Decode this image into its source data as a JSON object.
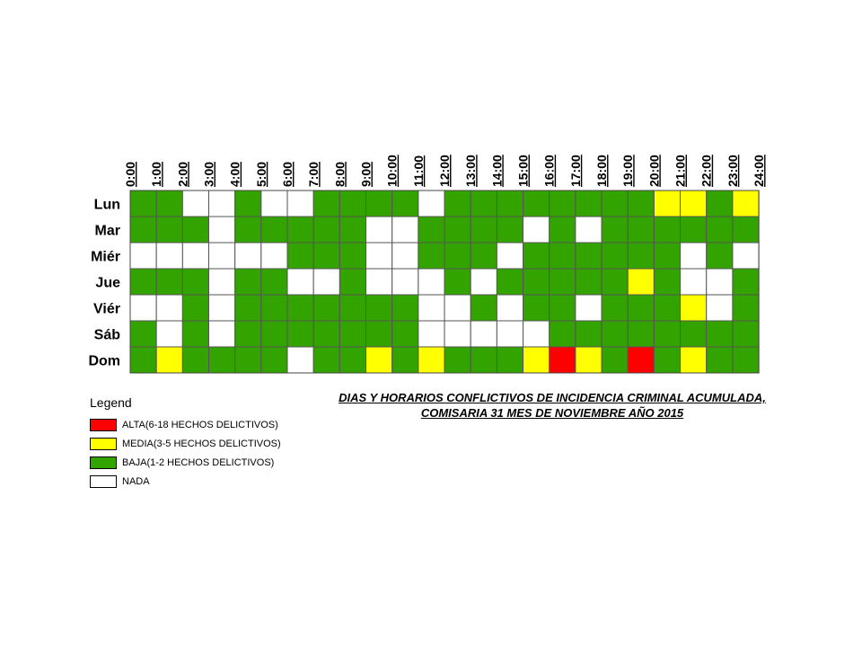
{
  "chart_data": {
    "type": "heatmap",
    "title_lines": [
      "DIAS Y HORARIOS CONFLICTIVOS DE INCIDENCIA CRIMINAL ACUMULADA,",
      "COMISARIA 31 MES DE NOVIEMBRE AÑO 2015"
    ],
    "x_labels": [
      "0:00",
      "1:00",
      "2:00",
      "3:00",
      "4:00",
      "5:00",
      "6:00",
      "7:00",
      "8:00",
      "9:00",
      "10:00",
      "11:00",
      "12:00",
      "13:00",
      "14:00",
      "15:00",
      "16:00",
      "17:00",
      "18:00",
      "19:00",
      "20:00",
      "21:00",
      "22:00",
      "23:00",
      "24:00"
    ],
    "y_labels": [
      "Lun",
      "Mar",
      "Miér",
      "Jue",
      "Viér",
      "Sáb",
      "Dom"
    ],
    "level_codes": {
      "A": "ALTA",
      "M": "MEDIA",
      "B": "BAJA",
      "N": "NADA"
    },
    "grid": [
      [
        "B",
        "B",
        "N",
        "N",
        "B",
        "N",
        "N",
        "B",
        "B",
        "B",
        "B",
        "N",
        "B",
        "B",
        "B",
        "B",
        "B",
        "B",
        "B",
        "B",
        "M",
        "M",
        "B",
        "M"
      ],
      [
        "B",
        "B",
        "B",
        "N",
        "B",
        "B",
        "B",
        "B",
        "B",
        "N",
        "N",
        "B",
        "B",
        "B",
        "B",
        "N",
        "B",
        "N",
        "B",
        "B",
        "B",
        "B",
        "B",
        "B"
      ],
      [
        "N",
        "N",
        "N",
        "N",
        "N",
        "N",
        "B",
        "B",
        "B",
        "N",
        "N",
        "B",
        "B",
        "B",
        "N",
        "B",
        "B",
        "B",
        "B",
        "B",
        "B",
        "N",
        "B",
        "N"
      ],
      [
        "B",
        "B",
        "B",
        "N",
        "B",
        "B",
        "N",
        "N",
        "B",
        "N",
        "N",
        "N",
        "B",
        "N",
        "B",
        "B",
        "B",
        "B",
        "B",
        "M",
        "B",
        "N",
        "N",
        "B"
      ],
      [
        "N",
        "N",
        "B",
        "N",
        "B",
        "B",
        "B",
        "B",
        "B",
        "B",
        "B",
        "N",
        "N",
        "B",
        "N",
        "B",
        "B",
        "N",
        "B",
        "B",
        "B",
        "M",
        "N",
        "B"
      ],
      [
        "B",
        "N",
        "B",
        "N",
        "B",
        "B",
        "B",
        "B",
        "B",
        "B",
        "B",
        "N",
        "N",
        "N",
        "N",
        "N",
        "B",
        "B",
        "B",
        "B",
        "B",
        "B",
        "B",
        "B"
      ],
      [
        "B",
        "M",
        "B",
        "B",
        "B",
        "B",
        "N",
        "B",
        "B",
        "M",
        "B",
        "M",
        "B",
        "B",
        "B",
        "M",
        "A",
        "M",
        "B",
        "A",
        "B",
        "M",
        "B",
        "B"
      ]
    ],
    "legend_title": "Legend",
    "legend": [
      {
        "code": "A",
        "label": "ALTA(6-18 HECHOS DELICTIVOS)",
        "color": "#ff0000"
      },
      {
        "code": "M",
        "label": "MEDIA(3-5 HECHOS DELICTIVOS)",
        "color": "#ffff00"
      },
      {
        "code": "B",
        "label": "BAJA(1-2 HECHOS DELICTIVOS)",
        "color": "#33a300"
      },
      {
        "code": "N",
        "label": "NADA",
        "color": "#ffffff"
      }
    ]
  }
}
